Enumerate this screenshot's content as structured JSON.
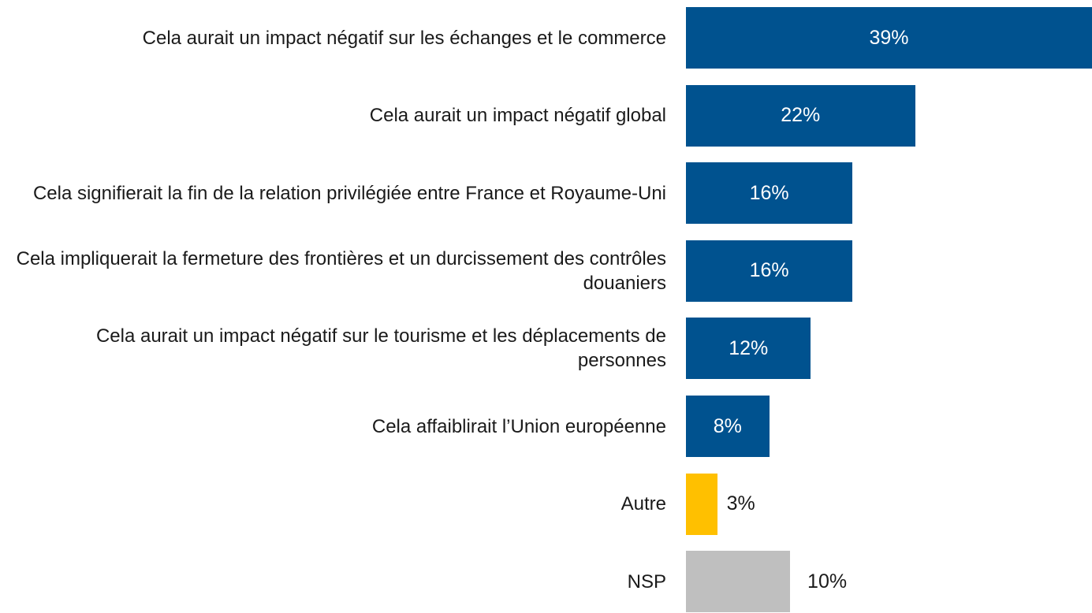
{
  "chart_data": {
    "type": "bar",
    "orientation": "horizontal",
    "categories": [
      "Cela aurait un impact négatif sur les échanges et le commerce",
      "Cela aurait un impact négatif global",
      "Cela signifierait la fin de la relation privilégiée entre France et Royaume-Uni",
      "Cela impliquerait la fermeture des frontières et un durcissement des contrôles douaniers",
      "Cela aurait un impact négatif sur le tourisme et les déplacements de personnes",
      "Cela affaiblirait l’Union européenne",
      "Autre",
      "NSP"
    ],
    "values": [
      39,
      22,
      16,
      16,
      12,
      8,
      3,
      10
    ],
    "value_labels": [
      "39%",
      "22%",
      "16%",
      "16%",
      "12%",
      "8%",
      "3%",
      "10%"
    ],
    "colors": [
      "#00528f",
      "#00528f",
      "#00528f",
      "#00528f",
      "#00528f",
      "#00528f",
      "#ffc000",
      "#bfbfbf"
    ],
    "xlim": [
      0,
      39
    ]
  }
}
